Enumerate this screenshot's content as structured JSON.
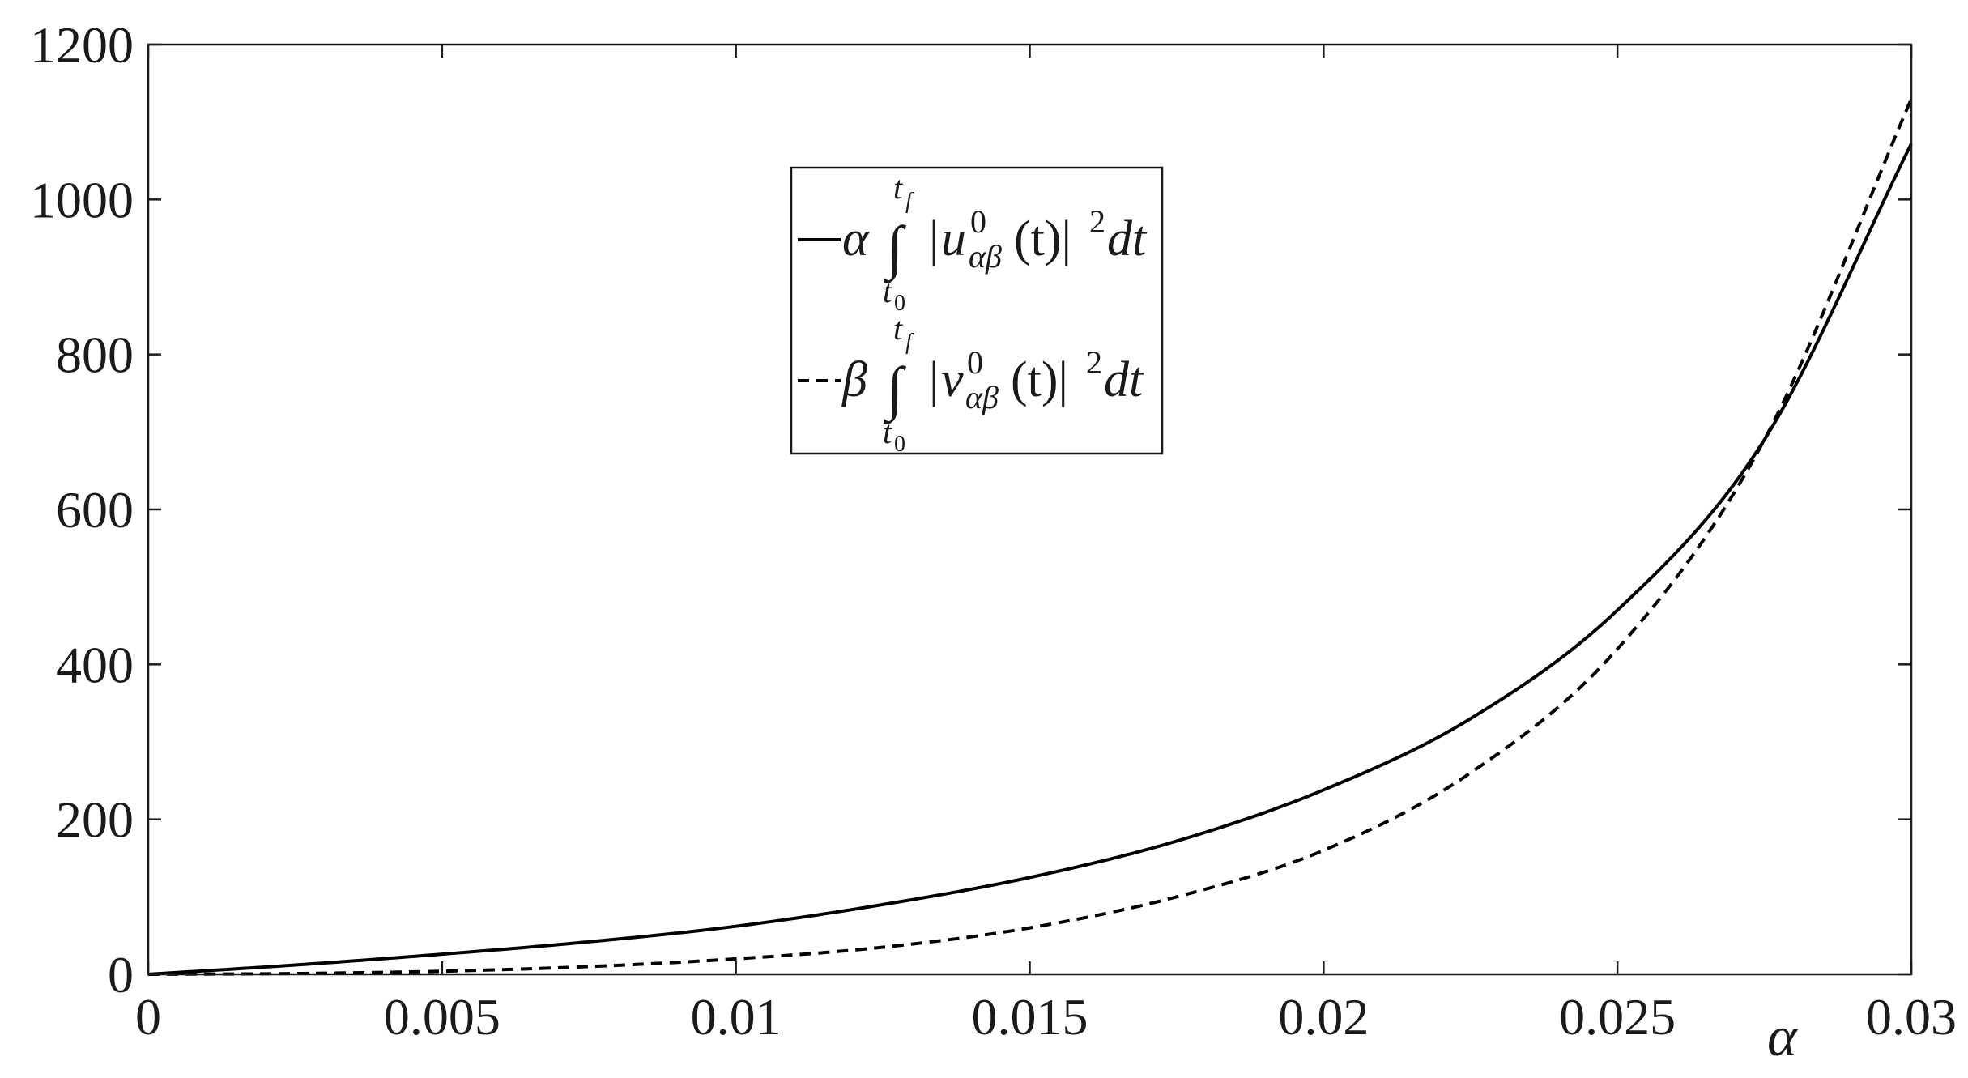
{
  "chart_data": {
    "type": "line",
    "xlabel": "α",
    "ylabel": "",
    "xlim": [
      0,
      0.03
    ],
    "ylim": [
      0,
      1200
    ],
    "x_ticks": [
      0,
      0.005,
      0.01,
      0.015,
      0.02,
      0.025,
      0.03
    ],
    "x_tick_labels": [
      "0",
      "0.005",
      "0.01",
      "0.015",
      "0.02",
      "0.025",
      "0.03"
    ],
    "y_ticks": [
      0,
      200,
      400,
      600,
      800,
      1000,
      1200
    ],
    "y_tick_labels": [
      "0",
      "200",
      "400",
      "600",
      "800",
      "1000",
      "1200"
    ],
    "grid": false,
    "legend_placement": "top-center",
    "x": [
      0,
      0.0025,
      0.005,
      0.0075,
      0.01,
      0.0125,
      0.015,
      0.0175,
      0.02,
      0.0225,
      0.025,
      0.0275,
      0.03
    ],
    "series": [
      {
        "name": "α ∫ |u⁰αβ(t)|² dt (from t₀ to t_f)",
        "style": "solid",
        "values": [
          0,
          12,
          26,
          42,
          62,
          90,
          125,
          172,
          238,
          330,
          470,
          690,
          1072
        ]
      },
      {
        "name": "β ∫ |v⁰αβ(t)|² dt (from t₀ to t_f)",
        "style": "dashed",
        "values": [
          0,
          1,
          4,
          10,
          20,
          35,
          60,
          100,
          160,
          260,
          420,
          690,
          1130
        ]
      }
    ]
  },
  "legend": {
    "entries": [
      {
        "coef": "α",
        "int_sign": "∫",
        "upper": "t",
        "upper_sub": "f",
        "lower": "t",
        "lower_sub": "0",
        "abs_open": "|",
        "fn": "u",
        "fn_sup": "0",
        "fn_sub": "αβ",
        "arg": "(t)",
        "abs_close": "|",
        "power": "2",
        "diff": "dt"
      },
      {
        "coef": "β",
        "int_sign": "∫",
        "upper": "t",
        "upper_sub": "f",
        "lower": "t",
        "lower_sub": "0",
        "abs_open": "|",
        "fn": "v",
        "fn_sup": "0",
        "fn_sub": "αβ",
        "arg": "(t)",
        "abs_close": "|",
        "power": "2",
        "diff": "dt"
      }
    ]
  }
}
